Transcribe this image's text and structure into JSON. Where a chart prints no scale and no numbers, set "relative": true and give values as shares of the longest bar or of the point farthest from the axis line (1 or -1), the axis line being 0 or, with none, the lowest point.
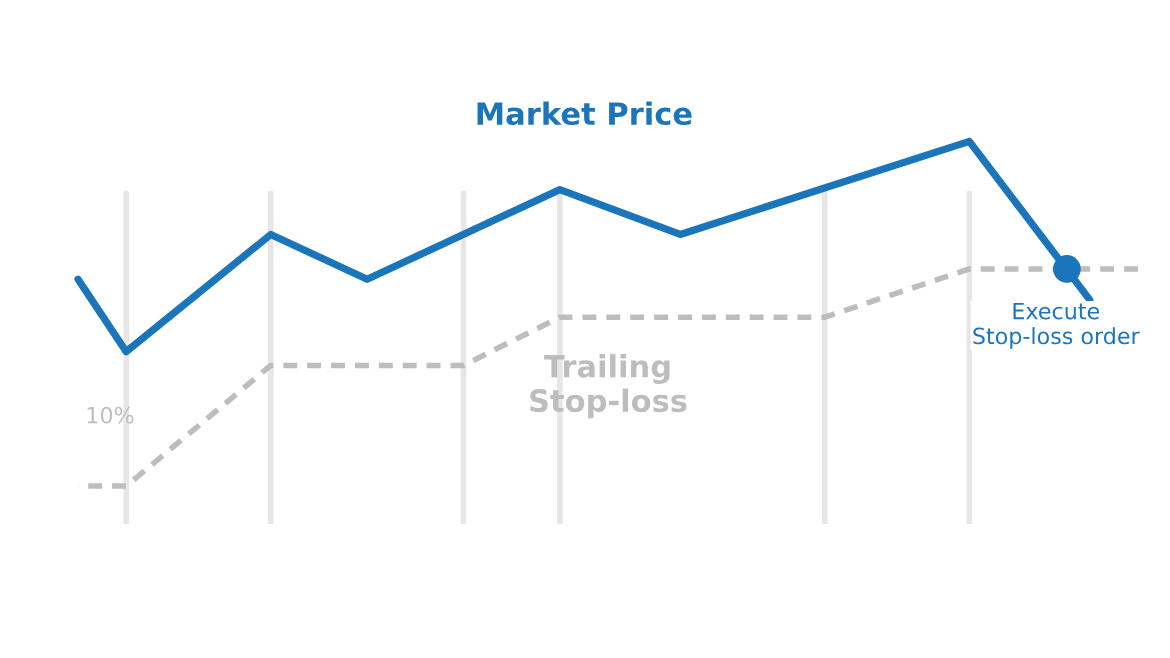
{
  "chart_data": {
    "type": "line",
    "relative": true,
    "tick_labels": false,
    "legend": false,
    "grid": "x",
    "line_style": "solid",
    "categories": [
      null,
      null,
      null,
      null,
      null,
      null,
      null,
      null,
      null,
      null,
      null,
      null,
      null,
      null,
      null,
      null,
      null,
      null,
      null,
      null,
      null,
      null,
      null,
      null,
      null,
      null,
      null,
      null,
      null,
      null,
      null,
      null,
      null,
      null,
      null,
      null,
      null,
      null,
      null,
      null,
      null,
      null,
      null,
      null,
      null
    ],
    "series": [
      {
        "name": "Market Price",
        "color": "#1b75bb",
        "values": [
          0.6,
          null,
          0.39,
          null,
          null,
          null,
          null,
          null,
          0.73,
          null,
          null,
          null,
          0.6,
          null,
          null,
          null,
          null,
          null,
          null,
          null,
          0.86,
          null,
          null,
          null,
          null,
          0.73,
          null,
          null,
          null,
          null,
          null,
          null,
          null,
          null,
          null,
          null,
          null,
          1.0,
          null,
          null,
          null,
          null,
          0.54,
          null,
          null
        ]
      },
      {
        "name": "Trailing Stop-loss",
        "color": "#bdbdbd",
        "line_style": "dashed",
        "values": [
          0,
          null,
          0,
          null,
          null,
          null,
          null,
          null,
          0.35,
          null,
          null,
          null,
          null,
          null,
          null,
          null,
          0.35,
          null,
          null,
          null,
          0.49,
          null,
          null,
          null,
          null,
          null,
          null,
          null,
          null,
          null,
          null,
          0.49,
          null,
          null,
          null,
          null,
          null,
          0.63,
          null,
          null,
          null,
          null,
          null,
          null,
          0.63
        ]
      }
    ],
    "annotations": [
      "10%",
      "Execute\nStop-loss order"
    ]
  }
}
